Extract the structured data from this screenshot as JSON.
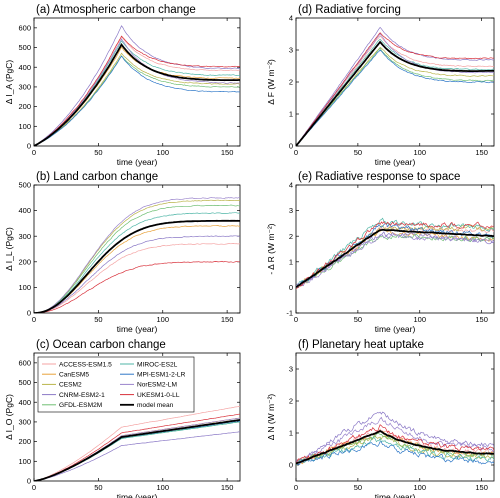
{
  "figure": {
    "x_range": [
      0,
      160
    ],
    "x_ticks": [
      0,
      50,
      100,
      150
    ],
    "xlabel": "time (year)"
  },
  "legend": {
    "position": "top-left of panel (c)",
    "entries": [
      {
        "name": "ACCESS-ESM1.5",
        "color": "#f4a3a3"
      },
      {
        "name": "CanESM5",
        "color": "#e8a23a"
      },
      {
        "name": "CESM2",
        "color": "#b9b44a"
      },
      {
        "name": "CNRM-ESM2-1",
        "color": "#8a78c6"
      },
      {
        "name": "GFDL-ESM2M",
        "color": "#6fbf73"
      },
      {
        "name": "MIROC-ES2L",
        "color": "#4fb6a7"
      },
      {
        "name": "MPI-ESM1-2-LR",
        "color": "#2f78c8"
      },
      {
        "name": "NorESM2-LM",
        "color": "#9a84cc"
      },
      {
        "name": "UKESM1-0-LL",
        "color": "#d8303a"
      },
      {
        "name": "model mean",
        "color": "#000000"
      }
    ]
  },
  "chart_data": [
    {
      "panel": "a",
      "title": "(a) Atmospheric carbon change",
      "type": "line",
      "ylabel": "Δ I_A (PgC)",
      "ylim": [
        0,
        650
      ],
      "yticks": [
        0,
        100,
        200,
        300,
        400,
        500,
        600
      ],
      "xlim": [
        0,
        160
      ],
      "xlabel": "time (year)",
      "peak_year": 68,
      "series": [
        {
          "name": "ACCESS-ESM1.5",
          "peak": 555,
          "end": 385
        },
        {
          "name": "CanESM5",
          "peak": 500,
          "end": 345
        },
        {
          "name": "CESM2",
          "peak": 470,
          "end": 315
        },
        {
          "name": "CNRM-ESM2-1",
          "peak": 610,
          "end": 395
        },
        {
          "name": "GFDL-ESM2M",
          "peak": 460,
          "end": 300
        },
        {
          "name": "MIROC-ES2L",
          "peak": 535,
          "end": 360
        },
        {
          "name": "MPI-ESM1-2-LR",
          "peak": 455,
          "end": 275
        },
        {
          "name": "NorESM2-LM",
          "peak": 545,
          "end": 320
        },
        {
          "name": "UKESM1-0-LL",
          "peak": 560,
          "end": 405
        },
        {
          "name": "model mean",
          "peak": 515,
          "end": 335
        }
      ]
    },
    {
      "panel": "b",
      "title": "(b) Land carbon change",
      "type": "line",
      "ylabel": "Δ I_L (PgC)",
      "ylim": [
        0,
        500
      ],
      "yticks": [
        0,
        100,
        200,
        300,
        400,
        500
      ],
      "xlim": [
        0,
        160
      ],
      "xlabel": "time (year)",
      "series": [
        {
          "name": "ACCESS-ESM1.5",
          "end": 270
        },
        {
          "name": "CanESM5",
          "end": 340
        },
        {
          "name": "CESM2",
          "end": 440
        },
        {
          "name": "CNRM-ESM2-1",
          "end": 300
        },
        {
          "name": "GFDL-ESM2M",
          "end": 420
        },
        {
          "name": "MIROC-ES2L",
          "end": 390
        },
        {
          "name": "MPI-ESM1-2-LR",
          "end": 360
        },
        {
          "name": "NorESM2-LM",
          "end": 450
        },
        {
          "name": "UKESM1-0-LL",
          "end": 200
        },
        {
          "name": "model mean",
          "end": 360
        }
      ]
    },
    {
      "panel": "c",
      "title": "(c) Ocean carbon change",
      "type": "line",
      "ylabel": "Δ I_O (PgC)",
      "ylim": [
        0,
        650
      ],
      "yticks": [
        0,
        100,
        200,
        300,
        400,
        500,
        600
      ],
      "xlim": [
        0,
        160
      ],
      "xlabel": "time (year)",
      "series": [
        {
          "name": "ACCESS-ESM1.5",
          "end": 380
        },
        {
          "name": "CanESM5",
          "end": 320
        },
        {
          "name": "CESM2",
          "end": 310
        },
        {
          "name": "CNRM-ESM2-1",
          "end": 250
        },
        {
          "name": "GFDL-ESM2M",
          "end": 300
        },
        {
          "name": "MIROC-ES2L",
          "end": 300
        },
        {
          "name": "MPI-ESM1-2-LR",
          "end": 305
        },
        {
          "name": "NorESM2-LM",
          "end": 320
        },
        {
          "name": "UKESM1-0-LL",
          "end": 340
        },
        {
          "name": "model mean",
          "end": 310
        }
      ]
    },
    {
      "panel": "d",
      "title": "(d) Radiative forcing",
      "type": "line",
      "ylabel": "Δ F (W m⁻²)",
      "ylim": [
        0,
        4
      ],
      "yticks": [
        0,
        1,
        2,
        3,
        4
      ],
      "xlim": [
        0,
        160
      ],
      "xlabel": "time (year)",
      "peak_year": 68,
      "series": [
        {
          "name": "ACCESS-ESM1.5",
          "peak": 3.45,
          "end": 2.5
        },
        {
          "name": "CanESM5",
          "peak": 3.25,
          "end": 2.35
        },
        {
          "name": "CESM2",
          "peak": 3.1,
          "end": 2.2
        },
        {
          "name": "CNRM-ESM2-1",
          "peak": 3.7,
          "end": 2.7
        },
        {
          "name": "GFDL-ESM2M",
          "peak": 3.05,
          "end": 2.05
        },
        {
          "name": "MIROC-ES2L",
          "peak": 3.35,
          "end": 2.4
        },
        {
          "name": "MPI-ESM1-2-LR",
          "peak": 3.0,
          "end": 2.0
        },
        {
          "name": "NorESM2-LM",
          "peak": 3.5,
          "end": 2.3
        },
        {
          "name": "UKESM1-0-LL",
          "peak": 3.55,
          "end": 2.75
        },
        {
          "name": "model mean",
          "peak": 3.25,
          "end": 2.35
        }
      ]
    },
    {
      "panel": "e",
      "title": "(e) Radiative response to space",
      "type": "line",
      "ylabel": "- Δ R (W m⁻²)",
      "ylim": [
        -1,
        4
      ],
      "yticks": [
        -1,
        0,
        1,
        2,
        3,
        4
      ],
      "xlim": [
        0,
        160
      ],
      "xlabel": "time (year)",
      "series": [
        {
          "name": "ACCESS-ESM1.5",
          "peak": 2.3,
          "end": 2.2
        },
        {
          "name": "CanESM5",
          "peak": 2.2,
          "end": 1.9
        },
        {
          "name": "CESM2",
          "peak": 2.3,
          "end": 2.3
        },
        {
          "name": "CNRM-ESM2-1",
          "peak": 2.1,
          "end": 1.8
        },
        {
          "name": "GFDL-ESM2M",
          "peak": 2.0,
          "end": 1.9
        },
        {
          "name": "MIROC-ES2L",
          "peak": 2.6,
          "end": 2.3
        },
        {
          "name": "MPI-ESM1-2-LR",
          "peak": 2.4,
          "end": 2.0
        },
        {
          "name": "NorESM2-LM",
          "peak": 2.0,
          "end": 1.8
        },
        {
          "name": "UKESM1-0-LL",
          "peak": 2.5,
          "end": 2.4
        },
        {
          "name": "model mean",
          "peak": 2.25,
          "end": 2.0
        }
      ]
    },
    {
      "panel": "f",
      "title": "(f) Planetary heat uptake",
      "type": "line",
      "ylabel": "Δ N (W m⁻²)",
      "ylim": [
        -0.5,
        3.5
      ],
      "yticks": [
        0,
        1,
        2,
        3
      ],
      "xlim": [
        0,
        160
      ],
      "xlabel": "time (year)",
      "series": [
        {
          "name": "ACCESS-ESM1.5",
          "peak": 1.1,
          "end": 0.4
        },
        {
          "name": "CanESM5",
          "peak": 1.0,
          "end": 0.35
        },
        {
          "name": "CESM2",
          "peak": 0.9,
          "end": 0.25
        },
        {
          "name": "CNRM-ESM2-1",
          "peak": 1.7,
          "end": 0.6
        },
        {
          "name": "GFDL-ESM2M",
          "peak": 0.95,
          "end": 0.3
        },
        {
          "name": "MIROC-ES2L",
          "peak": 0.8,
          "end": 0.2
        },
        {
          "name": "MPI-ESM1-2-LR",
          "peak": 0.7,
          "end": 0.1
        },
        {
          "name": "NorESM2-LM",
          "peak": 1.45,
          "end": 0.5
        },
        {
          "name": "UKESM1-0-LL",
          "peak": 1.2,
          "end": 0.45
        },
        {
          "name": "model mean",
          "peak": 1.05,
          "end": 0.35
        }
      ]
    }
  ]
}
